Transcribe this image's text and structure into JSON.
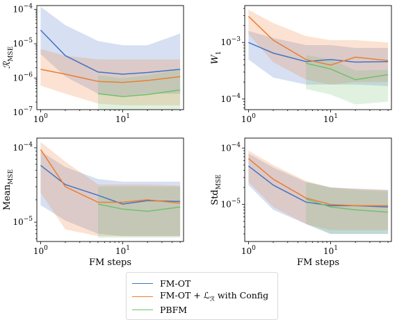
{
  "chart_data": [
    {
      "type": "line",
      "ylabel": "R_MSE",
      "xlabel": "",
      "xscale": "log",
      "yscale": "log",
      "xlim": [
        0.9,
        55
      ],
      "ylim": [
        1.2e-07,
        0.00013
      ],
      "xticks": [
        {
          "v": 1,
          "label": "10^0"
        },
        {
          "v": 10,
          "label": "10^1"
        }
      ],
      "yticks": [
        {
          "v": 1e-07,
          "label": "10^-7"
        },
        {
          "v": 1e-06,
          "label": "10^-6"
        },
        {
          "v": 1e-05,
          "label": "10^-5"
        },
        {
          "v": 0.0001,
          "label": "10^-4"
        }
      ],
      "series": [
        {
          "name": "FM-OT",
          "color": "#4472c4",
          "x": [
            1,
            2,
            5,
            10,
            20,
            50
          ],
          "values": [
            2.5e-05,
            4.5e-06,
            1.5e-06,
            1.3e-06,
            1.45e-06,
            1.8e-06
          ],
          "lower": [
            5e-06,
            1.1e-06,
            3.5e-07,
            3e-07,
            3.5e-07,
            3.5e-07
          ],
          "upper": [
            0.00012,
            3.5e-05,
            1.2e-05,
            9e-06,
            9e-06,
            2e-05
          ]
        },
        {
          "name": "FM-OT + L_R with Config",
          "color": "#ed7d31",
          "x": [
            1,
            2,
            5,
            10,
            20,
            50
          ],
          "values": [
            1.8e-06,
            1.3e-06,
            8e-07,
            7.5e-07,
            8.5e-07,
            1.1e-06
          ],
          "lower": [
            6e-07,
            3.5e-07,
            1.8e-07,
            1.6e-07,
            1.6e-07,
            1.6e-07
          ],
          "upper": [
            7e-06,
            4.5e-06,
            3.5e-06,
            3.5e-06,
            3.5e-06,
            3.5e-06
          ]
        },
        {
          "name": "PBFM",
          "color": "#70c070",
          "x": [
            5,
            10,
            20,
            50
          ],
          "values": [
            3.5e-07,
            2.9e-07,
            3.3e-07,
            4.5e-07
          ],
          "lower": [
            8e-08,
            8e-08,
            8e-08,
            8e-08
          ],
          "upper": [
            1.2e-06,
            1e-06,
            1.2e-06,
            1.8e-06
          ]
        }
      ]
    },
    {
      "type": "line",
      "ylabel": "W_1",
      "xlabel": "",
      "xscale": "log",
      "yscale": "log",
      "xlim": [
        0.9,
        55
      ],
      "ylim": [
        6.5e-05,
        0.0045
      ],
      "xticks": [
        {
          "v": 1,
          "label": "10^0"
        },
        {
          "v": 10,
          "label": "10^1"
        }
      ],
      "yticks": [
        {
          "v": 0.0001,
          "label": "10^-4"
        },
        {
          "v": 0.001,
          "label": "10^-3"
        }
      ],
      "series": [
        {
          "name": "FM-OT",
          "color": "#4472c4",
          "x": [
            1,
            2,
            5,
            10,
            20,
            50
          ],
          "values": [
            0.001,
            0.00065,
            0.00046,
            0.0005,
            0.00045,
            0.00046
          ],
          "lower": [
            0.0005,
            0.00024,
            0.00018,
            0.00018,
            0.00018,
            0.00017
          ],
          "upper": [
            0.0016,
            0.0012,
            0.0009,
            0.0009,
            0.0008,
            0.0008
          ]
        },
        {
          "name": "FM-OT + L_R with Config",
          "color": "#ed7d31",
          "x": [
            1,
            2,
            5,
            10,
            20,
            50
          ],
          "values": [
            0.0029,
            0.0011,
            0.0005,
            0.0004,
            0.00055,
            0.00048
          ],
          "lower": [
            0.0014,
            0.00045,
            0.00022,
            0.00018,
            0.0002,
            0.0002
          ],
          "upper": [
            0.0038,
            0.0022,
            0.0013,
            0.0011,
            0.0011,
            0.001
          ]
        },
        {
          "name": "PBFM",
          "color": "#70c070",
          "x": [
            5,
            10,
            20,
            50
          ],
          "values": [
            0.00043,
            0.00034,
            0.00022,
            0.00027
          ],
          "lower": [
            0.00015,
            0.00012,
            8e-05,
            9e-05
          ],
          "upper": [
            0.0006,
            0.0005,
            0.00032,
            0.00033
          ]
        }
      ]
    },
    {
      "type": "line",
      "ylabel": "Mean_MSE",
      "xlabel": "FM steps",
      "xscale": "log",
      "yscale": "log",
      "xlim": [
        0.9,
        55
      ],
      "ylim": [
        5.5e-06,
        0.000135
      ],
      "xticks": [
        {
          "v": 1,
          "label": "10^0"
        },
        {
          "v": 10,
          "label": "10^1"
        }
      ],
      "yticks": [
        {
          "v": 1e-05,
          "label": "10^-5"
        },
        {
          "v": 0.0001,
          "label": "10^-4"
        }
      ],
      "series": [
        {
          "name": "FM-OT",
          "color": "#4472c4",
          "x": [
            1,
            2,
            5,
            10,
            20,
            50
          ],
          "values": [
            5.8e-05,
            3.2e-05,
            2.3e-05,
            1.75e-05,
            1.95e-05,
            1.9e-05
          ],
          "lower": [
            1.7e-05,
            1.05e-05,
            7e-06,
            6.5e-06,
            6.5e-06,
            6.5e-06
          ],
          "upper": [
            9e-05,
            5.5e-05,
            3.8e-05,
            3.5e-05,
            3.5e-05,
            3.5e-05
          ]
        },
        {
          "name": "FM-OT + L_R with Config",
          "color": "#ed7d31",
          "x": [
            1,
            2,
            5,
            10,
            20,
            50
          ],
          "values": [
            9.5e-05,
            3e-05,
            1.85e-05,
            1.85e-05,
            2e-05,
            1.8e-05
          ],
          "lower": [
            2.5e-05,
            8e-06,
            6.5e-06,
            6.5e-06,
            6.5e-06,
            6.5e-06
          ],
          "upper": [
            0.00012,
            6.5e-05,
            3.2e-05,
            3.2e-05,
            3.2e-05,
            3.1e-05
          ]
        },
        {
          "name": "PBFM",
          "color": "#70c070",
          "x": [
            5,
            10,
            20,
            50
          ],
          "values": [
            1.75e-05,
            1.5e-05,
            1.4e-05,
            1.6e-05
          ],
          "lower": [
            6.2e-06,
            6.2e-06,
            6.2e-06,
            6.2e-06
          ],
          "upper": [
            3e-05,
            3e-05,
            3e-05,
            3e-05
          ]
        }
      ]
    },
    {
      "type": "line",
      "ylabel": "Std_MSE",
      "xlabel": "FM steps",
      "xscale": "log",
      "yscale": "log",
      "xlim": [
        0.9,
        55
      ],
      "ylim": [
        2.2e-06,
        0.00015
      ],
      "xticks": [
        {
          "v": 1,
          "label": "10^0"
        },
        {
          "v": 10,
          "label": "10^1"
        }
      ],
      "yticks": [
        {
          "v": 1e-05,
          "label": "10^-5"
        },
        {
          "v": 0.0001,
          "label": "10^-4"
        }
      ],
      "series": [
        {
          "name": "FM-OT",
          "color": "#4472c4",
          "x": [
            1,
            2,
            5,
            10,
            20,
            50
          ],
          "values": [
            4.8e-05,
            2.2e-05,
            1.1e-05,
            9.5e-06,
            9.5e-06,
            9e-06
          ],
          "lower": [
            2.2e-05,
            8e-06,
            4.5e-06,
            3e-06,
            3e-06,
            3e-06
          ],
          "upper": [
            8e-05,
            4.5e-05,
            2.5e-05,
            2e-05,
            1.9e-05,
            1.8e-05
          ]
        },
        {
          "name": "FM-OT + L_R with Config",
          "color": "#ed7d31",
          "x": [
            1,
            2,
            5,
            10,
            20,
            50
          ],
          "values": [
            6.5e-05,
            2.8e-05,
            1.3e-05,
            1e-05,
            9.5e-06,
            9.5e-06
          ],
          "lower": [
            2.5e-05,
            9e-06,
            4.5e-06,
            3.5e-06,
            3.5e-06,
            3.5e-06
          ],
          "upper": [
            9e-05,
            5e-05,
            2.6e-05,
            2e-05,
            1.9e-05,
            1.8e-05
          ]
        },
        {
          "name": "PBFM",
          "color": "#70c070",
          "x": [
            5,
            10,
            20,
            50
          ],
          "values": [
            1.25e-05,
            9e-06,
            8e-06,
            7.3e-06
          ],
          "lower": [
            4.5e-06,
            3e-06,
            3e-06,
            3e-06
          ],
          "upper": [
            2.5e-05,
            2e-05,
            1.8e-05,
            1.7e-05
          ]
        }
      ]
    }
  ],
  "legend": {
    "items": [
      {
        "label": "FM-OT",
        "color": "#4472c4"
      },
      {
        "label": "FM-OT + ℒ",
        "suffix": " with Config",
        "sub": "ℛ",
        "color": "#ed7d31"
      },
      {
        "label": "PBFM",
        "color": "#70c070"
      }
    ]
  }
}
